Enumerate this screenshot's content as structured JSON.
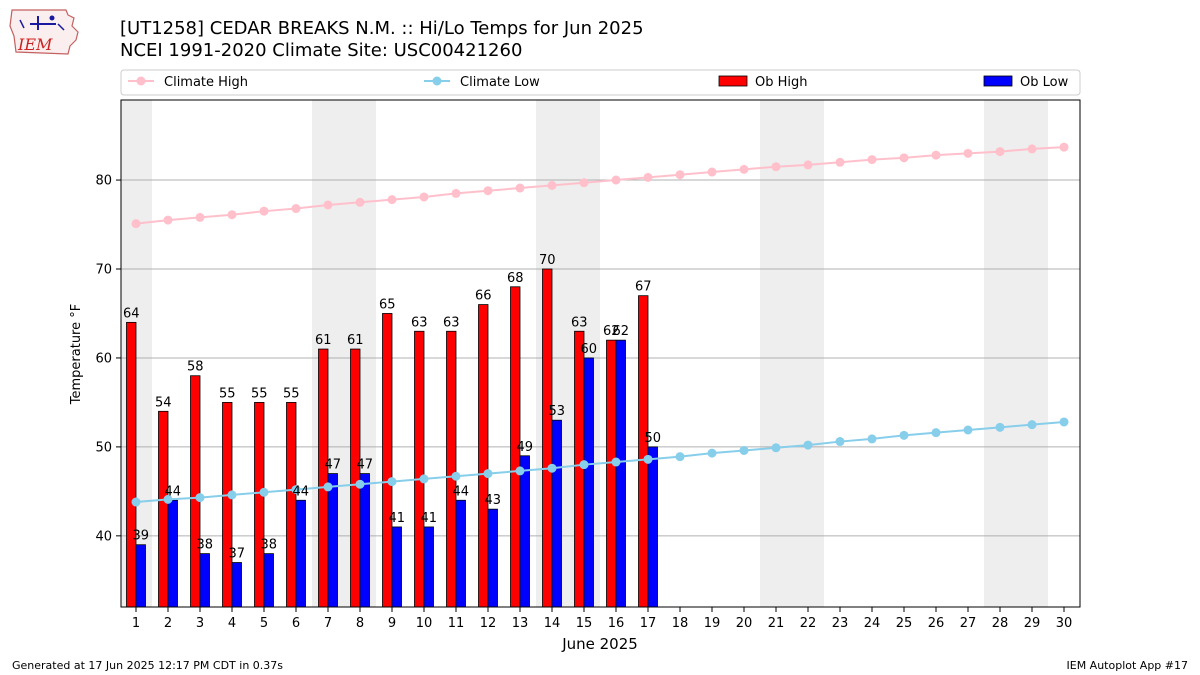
{
  "title_line1": "[UT1258] CEDAR BREAKS N.M. :: Hi/Lo Temps for Jun 2025",
  "title_line2": "NCEI 1991-2020 Climate Site: USC00421260",
  "logo_text": "IEM",
  "footer_left": "Generated at 17 Jun 2025 12:17 PM CDT in 0.37s",
  "footer_right": "IEM Autoplot App #17",
  "colors": {
    "ob_high": "#ff0000",
    "ob_low": "#0000ff",
    "climate_high": "#ffc0cb",
    "climate_low": "#87ceeb",
    "weekend_shade": "#eeeeee",
    "grid": "#b0b0b0"
  },
  "chart_data": {
    "type": "bar",
    "xlabel": "June 2025",
    "ylabel": "Temperature °F",
    "ylim": [
      32,
      89
    ],
    "yticks": [
      40,
      50,
      60,
      70,
      80
    ],
    "grid": "horizontal",
    "legend_placement": "top",
    "days": [
      1,
      2,
      3,
      4,
      5,
      6,
      7,
      8,
      9,
      10,
      11,
      12,
      13,
      14,
      15,
      16,
      17,
      18,
      19,
      20,
      21,
      22,
      23,
      24,
      25,
      26,
      27,
      28,
      29,
      30
    ],
    "weekend_spans": [
      [
        1,
        1
      ],
      [
        7,
        8
      ],
      [
        14,
        15
      ],
      [
        21,
        22
      ],
      [
        28,
        29
      ]
    ],
    "series": [
      {
        "name": "Ob High",
        "kind": "bar",
        "values": [
          64,
          54,
          58,
          55,
          55,
          55,
          61,
          61,
          65,
          63,
          63,
          66,
          68,
          70,
          63,
          62,
          67
        ]
      },
      {
        "name": "Ob Low",
        "kind": "bar",
        "values": [
          39,
          44,
          38,
          37,
          38,
          44,
          47,
          47,
          41,
          41,
          44,
          43,
          49,
          53,
          60,
          62,
          50
        ]
      },
      {
        "name": "Climate High",
        "kind": "line",
        "values": [
          75.1,
          75.5,
          75.8,
          76.1,
          76.5,
          76.8,
          77.2,
          77.5,
          77.8,
          78.1,
          78.5,
          78.8,
          79.1,
          79.4,
          79.7,
          80.0,
          80.3,
          80.6,
          80.9,
          81.2,
          81.5,
          81.7,
          82.0,
          82.3,
          82.5,
          82.8,
          83.0,
          83.2,
          83.5,
          83.7
        ]
      },
      {
        "name": "Climate Low",
        "kind": "line",
        "values": [
          43.8,
          44.1,
          44.3,
          44.6,
          44.9,
          45.2,
          45.5,
          45.8,
          46.1,
          46.4,
          46.7,
          47.0,
          47.3,
          47.6,
          48.0,
          48.3,
          48.6,
          48.9,
          49.3,
          49.6,
          49.9,
          50.2,
          50.6,
          50.9,
          51.3,
          51.6,
          51.9,
          52.2,
          52.5,
          52.8
        ]
      }
    ]
  }
}
